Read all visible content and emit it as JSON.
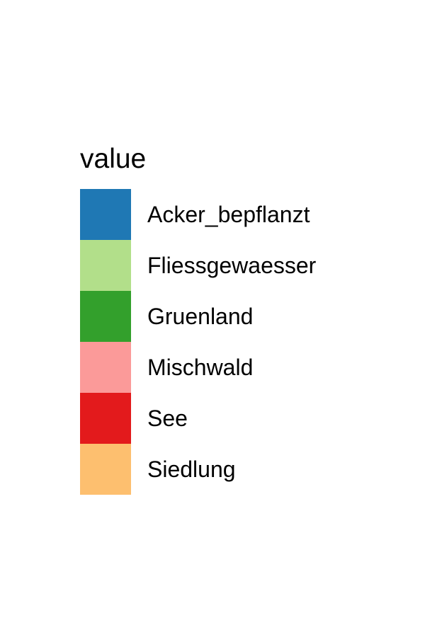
{
  "chart_data": {
    "type": "legend",
    "legend": {
      "title": "value",
      "entries": [
        {
          "label": "Acker_bepflanzt",
          "color": "#1f78b4"
        },
        {
          "label": "Fliessgewaesser",
          "color": "#b2df8a"
        },
        {
          "label": "Gruenland",
          "color": "#33a02c"
        },
        {
          "label": "Mischwald",
          "color": "#fb9a99"
        },
        {
          "label": "See",
          "color": "#e31a1c"
        },
        {
          "label": "Siedlung",
          "color": "#fdbf6f"
        }
      ]
    }
  }
}
